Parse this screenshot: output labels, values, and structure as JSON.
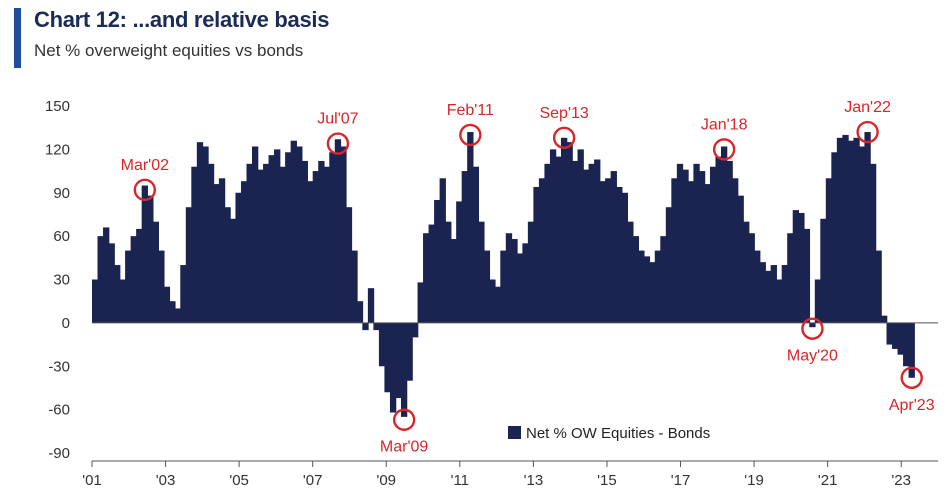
{
  "title": "Chart 12: ...and relative basis",
  "subtitle": "Net % overweight equities vs bonds",
  "colors": {
    "bar": "#1b2450",
    "annotation": "#d8262c",
    "accent": "#1f4e9e"
  },
  "chart_data": {
    "type": "bar",
    "title": "Chart 12: ...and relative basis",
    "subtitle": "Net % overweight equities vs bonds",
    "xlabel": "",
    "ylabel": "",
    "xlim": [
      2001.0,
      2024.0
    ],
    "ylim": [
      -90,
      150
    ],
    "yticks": [
      150,
      120,
      90,
      60,
      30,
      0,
      -30,
      -60,
      -90
    ],
    "xticks": [
      {
        "year": 2001.0,
        "label": "'01"
      },
      {
        "year": 2003.0,
        "label": "'03"
      },
      {
        "year": 2005.0,
        "label": "'05"
      },
      {
        "year": 2007.0,
        "label": "'07"
      },
      {
        "year": 2009.0,
        "label": "'09"
      },
      {
        "year": 2011.0,
        "label": "'11"
      },
      {
        "year": 2013.0,
        "label": "'13"
      },
      {
        "year": 2015.0,
        "label": "'15"
      },
      {
        "year": 2017.0,
        "label": "'17"
      },
      {
        "year": 2019.0,
        "label": "'19"
      },
      {
        "year": 2021.0,
        "label": "'21"
      },
      {
        "year": 2023.0,
        "label": "'23"
      }
    ],
    "legend": {
      "label": "Net % OW Equities - Bonds",
      "position": "bottom-center"
    },
    "series": [
      {
        "name": "Net % OW Equities - Bonds",
        "points": [
          [
            2001.0,
            30
          ],
          [
            2001.15,
            60
          ],
          [
            2001.3,
            66
          ],
          [
            2001.45,
            55
          ],
          [
            2001.6,
            40
          ],
          [
            2001.75,
            30
          ],
          [
            2001.9,
            50
          ],
          [
            2002.05,
            60
          ],
          [
            2002.2,
            65
          ],
          [
            2002.35,
            95
          ],
          [
            2002.5,
            88
          ],
          [
            2002.65,
            70
          ],
          [
            2002.8,
            50
          ],
          [
            2002.95,
            25
          ],
          [
            2003.1,
            15
          ],
          [
            2003.25,
            10
          ],
          [
            2003.4,
            40
          ],
          [
            2003.55,
            80
          ],
          [
            2003.7,
            108
          ],
          [
            2003.85,
            125
          ],
          [
            2004.0,
            122
          ],
          [
            2004.15,
            110
          ],
          [
            2004.3,
            96
          ],
          [
            2004.45,
            100
          ],
          [
            2004.6,
            80
          ],
          [
            2004.75,
            72
          ],
          [
            2004.9,
            90
          ],
          [
            2005.05,
            98
          ],
          [
            2005.2,
            110
          ],
          [
            2005.35,
            122
          ],
          [
            2005.5,
            106
          ],
          [
            2005.65,
            110
          ],
          [
            2005.8,
            116
          ],
          [
            2005.95,
            120
          ],
          [
            2006.1,
            108
          ],
          [
            2006.25,
            118
          ],
          [
            2006.4,
            126
          ],
          [
            2006.55,
            122
          ],
          [
            2006.7,
            112
          ],
          [
            2006.85,
            98
          ],
          [
            2007.0,
            105
          ],
          [
            2007.15,
            112
          ],
          [
            2007.3,
            108
          ],
          [
            2007.45,
            118
          ],
          [
            2007.6,
            127
          ],
          [
            2007.75,
            122
          ],
          [
            2007.9,
            80
          ],
          [
            2008.05,
            50
          ],
          [
            2008.2,
            15
          ],
          [
            2008.35,
            -5
          ],
          [
            2008.5,
            24
          ],
          [
            2008.65,
            -5
          ],
          [
            2008.8,
            -30
          ],
          [
            2008.95,
            -48
          ],
          [
            2009.1,
            -62
          ],
          [
            2009.25,
            -52
          ],
          [
            2009.4,
            -65
          ],
          [
            2009.55,
            -40
          ],
          [
            2009.7,
            -10
          ],
          [
            2009.85,
            28
          ],
          [
            2010.0,
            62
          ],
          [
            2010.15,
            68
          ],
          [
            2010.3,
            85
          ],
          [
            2010.45,
            100
          ],
          [
            2010.6,
            70
          ],
          [
            2010.75,
            58
          ],
          [
            2010.9,
            84
          ],
          [
            2011.05,
            105
          ],
          [
            2011.2,
            132
          ],
          [
            2011.35,
            108
          ],
          [
            2011.5,
            70
          ],
          [
            2011.65,
            50
          ],
          [
            2011.8,
            30
          ],
          [
            2011.95,
            25
          ],
          [
            2012.1,
            50
          ],
          [
            2012.25,
            62
          ],
          [
            2012.4,
            58
          ],
          [
            2012.55,
            48
          ],
          [
            2012.7,
            55
          ],
          [
            2012.85,
            70
          ],
          [
            2013.0,
            94
          ],
          [
            2013.15,
            100
          ],
          [
            2013.3,
            110
          ],
          [
            2013.45,
            120
          ],
          [
            2013.6,
            115
          ],
          [
            2013.75,
            128
          ],
          [
            2013.9,
            125
          ],
          [
            2014.05,
            112
          ],
          [
            2014.2,
            120
          ],
          [
            2014.35,
            106
          ],
          [
            2014.5,
            110
          ],
          [
            2014.65,
            113
          ],
          [
            2014.8,
            98
          ],
          [
            2014.95,
            100
          ],
          [
            2015.1,
            105
          ],
          [
            2015.25,
            94
          ],
          [
            2015.4,
            90
          ],
          [
            2015.55,
            70
          ],
          [
            2015.7,
            60
          ],
          [
            2015.85,
            50
          ],
          [
            2016.0,
            46
          ],
          [
            2016.15,
            42
          ],
          [
            2016.3,
            50
          ],
          [
            2016.45,
            60
          ],
          [
            2016.6,
            80
          ],
          [
            2016.75,
            100
          ],
          [
            2016.9,
            110
          ],
          [
            2017.05,
            106
          ],
          [
            2017.2,
            98
          ],
          [
            2017.35,
            110
          ],
          [
            2017.5,
            105
          ],
          [
            2017.65,
            96
          ],
          [
            2017.8,
            108
          ],
          [
            2017.95,
            115
          ],
          [
            2018.1,
            122
          ],
          [
            2018.25,
            112
          ],
          [
            2018.4,
            100
          ],
          [
            2018.55,
            88
          ],
          [
            2018.7,
            70
          ],
          [
            2018.85,
            62
          ],
          [
            2019.0,
            50
          ],
          [
            2019.15,
            42
          ],
          [
            2019.3,
            36
          ],
          [
            2019.45,
            40
          ],
          [
            2019.6,
            30
          ],
          [
            2019.75,
            40
          ],
          [
            2019.9,
            62
          ],
          [
            2020.05,
            78
          ],
          [
            2020.2,
            76
          ],
          [
            2020.35,
            65
          ],
          [
            2020.5,
            -3
          ],
          [
            2020.65,
            30
          ],
          [
            2020.8,
            72
          ],
          [
            2020.95,
            100
          ],
          [
            2021.1,
            118
          ],
          [
            2021.25,
            128
          ],
          [
            2021.4,
            130
          ],
          [
            2021.55,
            126
          ],
          [
            2021.7,
            128
          ],
          [
            2021.85,
            122
          ],
          [
            2022.0,
            132
          ],
          [
            2022.15,
            110
          ],
          [
            2022.3,
            50
          ],
          [
            2022.45,
            5
          ],
          [
            2022.6,
            -15
          ],
          [
            2022.75,
            -18
          ],
          [
            2022.9,
            -22
          ],
          [
            2023.05,
            -30
          ],
          [
            2023.2,
            -38
          ]
        ]
      }
    ],
    "annotations": [
      {
        "label": "Mar'02",
        "x": 2002.35,
        "y": 92
      },
      {
        "label": "Jul'07",
        "x": 2007.6,
        "y": 124
      },
      {
        "label": "Mar'09",
        "x": 2009.4,
        "y": -67
      },
      {
        "label": "Feb'11",
        "x": 2011.2,
        "y": 130
      },
      {
        "label": "Sep'13",
        "x": 2013.75,
        "y": 128
      },
      {
        "label": "Jan'18",
        "x": 2018.1,
        "y": 120
      },
      {
        "label": "May'20",
        "x": 2020.5,
        "y": -4
      },
      {
        "label": "Jan'22",
        "x": 2022.0,
        "y": 132
      },
      {
        "label": "Apr'23",
        "x": 2023.2,
        "y": -38
      }
    ]
  }
}
